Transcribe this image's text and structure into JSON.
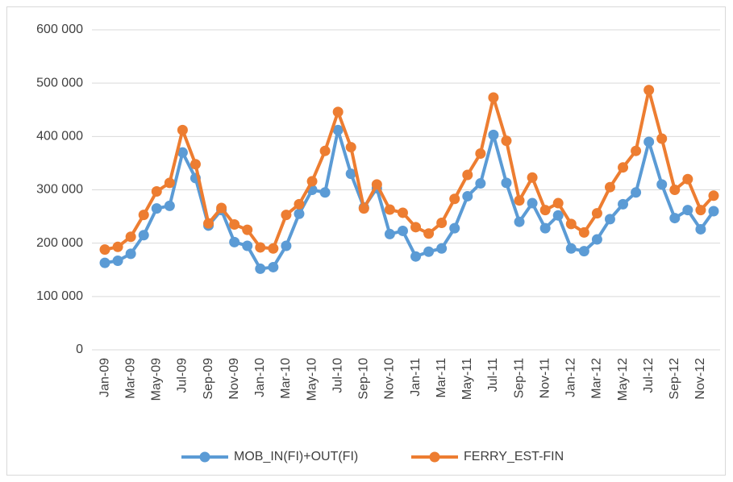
{
  "chart_data": {
    "type": "line",
    "categories": [
      "Jan-09",
      null,
      "Mar-09",
      null,
      "May-09",
      null,
      "Jul-09",
      null,
      "Sep-09",
      null,
      "Nov-09",
      null,
      "Jan-10",
      null,
      "Mar-10",
      null,
      "May-10",
      null,
      "Jul-10",
      null,
      "Sep-10",
      null,
      "Nov-10",
      null,
      "Jan-11",
      null,
      "Mar-11",
      null,
      "May-11",
      null,
      "Jul-11",
      null,
      "Sep-11",
      null,
      "Nov-11",
      null,
      "Jan-12",
      null,
      "Mar-12",
      null,
      "May-12",
      null,
      "Jul-12",
      null,
      "Sep-12",
      null,
      "Nov-12",
      null
    ],
    "series": [
      {
        "name": "MOB_IN(FI)+OUT(FI)",
        "color": "#5b9bd5",
        "values": [
          163000,
          167000,
          180000,
          215000,
          265000,
          270000,
          370000,
          322000,
          233000,
          262000,
          202000,
          195000,
          152000,
          155000,
          195000,
          255000,
          300000,
          295000,
          412000,
          330000,
          267000,
          303000,
          217000,
          223000,
          175000,
          184000,
          190000,
          228000,
          288000,
          312000,
          403000,
          313000,
          240000,
          275000,
          228000,
          252000,
          190000,
          185000,
          207000,
          245000,
          273000,
          295000,
          390000,
          310000,
          247000,
          262000,
          226000,
          260000
        ]
      },
      {
        "name": "FERRY_EST-FIN",
        "color": "#ed7d31",
        "values": [
          188000,
          193000,
          212000,
          253000,
          297000,
          313000,
          412000,
          348000,
          237000,
          266000,
          235000,
          225000,
          192000,
          190000,
          253000,
          273000,
          316000,
          373000,
          446000,
          380000,
          265000,
          310000,
          263000,
          257000,
          230000,
          218000,
          238000,
          283000,
          328000,
          368000,
          473000,
          392000,
          280000,
          323000,
          262000,
          275000,
          236000,
          220000,
          256000,
          305000,
          342000,
          373000,
          487000,
          396000,
          300000,
          320000,
          262000,
          289000
        ]
      }
    ],
    "ylim": [
      0,
      600000
    ],
    "yticks": [
      0,
      {
        "value": 100000,
        "label": "100 000"
      },
      {
        "value": 200000,
        "label": "200 000"
      },
      {
        "value": 300000,
        "label": "300 000"
      },
      {
        "value": 400000,
        "label": "400 000"
      },
      {
        "value": 500000,
        "label": "500 000"
      },
      {
        "value": 600000,
        "label": "600 000"
      }
    ],
    "grid": true,
    "legend": "bottom"
  }
}
